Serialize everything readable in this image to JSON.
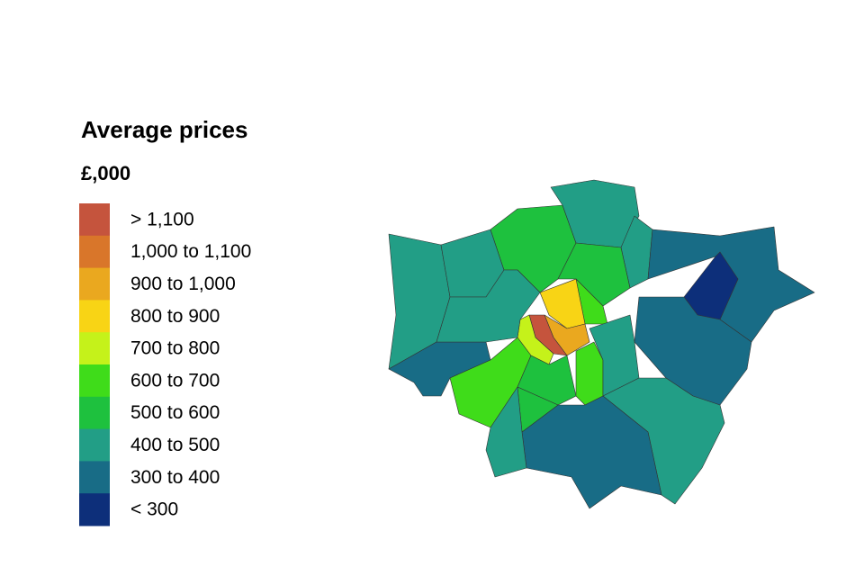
{
  "legend": {
    "title": "Average prices",
    "subtitle": "£,000",
    "items": [
      {
        "label": "> 1,100",
        "color": "#c5543d"
      },
      {
        "label": "1,000 to 1,100",
        "color": "#d9762a"
      },
      {
        "label": "900 to 1,000",
        "color": "#eaa81f"
      },
      {
        "label": "800 to 900",
        "color": "#f8d415"
      },
      {
        "label": "700 to 800",
        "color": "#c5f21a"
      },
      {
        "label": "600 to 700",
        "color": "#3fdc1a"
      },
      {
        "label": "500 to 600",
        "color": "#1ec13e"
      },
      {
        "label": "400 to 500",
        "color": "#229e86"
      },
      {
        "label": "300 to 400",
        "color": "#186c86"
      },
      {
        "label": "< 300",
        "color": "#0d2f7a"
      }
    ]
  }
}
